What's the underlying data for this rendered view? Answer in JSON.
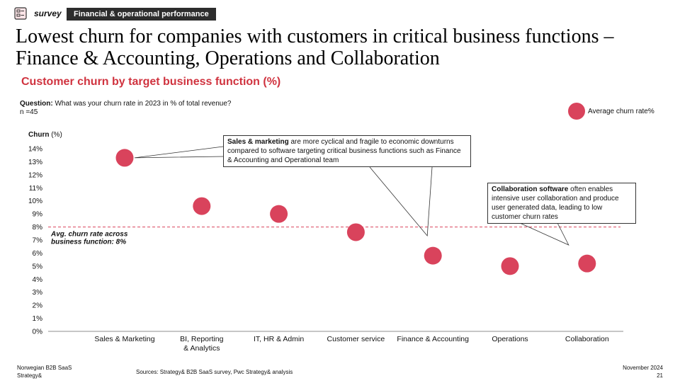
{
  "header": {
    "tag": "survey",
    "section": "Financial & operational performance"
  },
  "headline": "Lowest churn for companies with customers in critical business functions – Finance & Accounting, Operations and Collaboration",
  "subtitle": "Customer churn by target business function (%)",
  "question": {
    "label": "Question:",
    "text": "What was your churn rate in 2023 in % of total revenue?",
    "n": "n =45"
  },
  "legend": {
    "label": "Average churn rate%"
  },
  "colors": {
    "accent": "#d0333f",
    "point": "#d9435c",
    "avg_line": "#d9435c"
  },
  "chart_data": {
    "type": "scatter",
    "ylabel_bold": "Churn",
    "ylabel_unit": "(%)",
    "categories": [
      "Sales & Marketing",
      "BI, Reporting\n& Analytics",
      "IT, HR & Admin",
      "Customer service",
      "Finance & Accounting",
      "Operations",
      "Collaboration"
    ],
    "values": [
      13.3,
      9.6,
      9.0,
      7.6,
      5.8,
      5.0,
      5.2
    ],
    "yticks": [
      "0%",
      "1%",
      "2%",
      "3%",
      "4%",
      "5%",
      "6%",
      "7%",
      "8%",
      "9%",
      "10%",
      "11%",
      "12%",
      "13%",
      "14%"
    ],
    "ylim": [
      0,
      14
    ],
    "average": 8,
    "average_label": "Avg. churn rate across\nbusiness function: 8%"
  },
  "callouts": {
    "sales": {
      "bold": "Sales & marketing",
      "text": " are more cyclical and fragile to economic downturns compared to software targeting critical business functions such as Finance & Accounting and Operational team"
    },
    "collab": {
      "bold": "Collaboration software",
      "text": " often enables intensive user collaboration and produce user generated data, leading to low customer churn rates"
    }
  },
  "footer": {
    "left1": "Norwegian B2B SaaS",
    "left2": "Strategy&",
    "sources": "Sources: Strategy& B2B SaaS survey, Pwc Strategy& analysis",
    "date": "November 2024",
    "page": "21"
  }
}
